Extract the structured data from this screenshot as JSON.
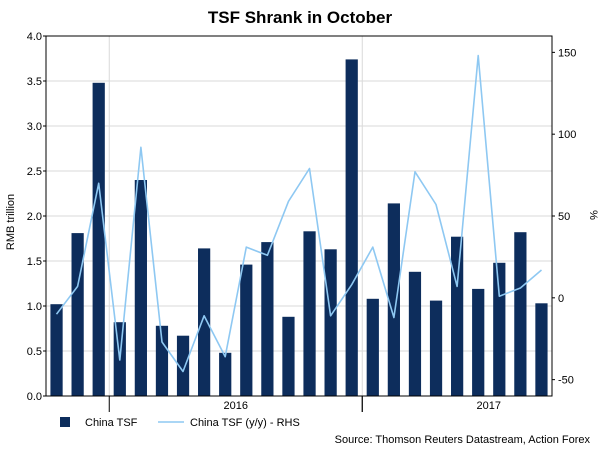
{
  "chart_data": {
    "type": "bar",
    "title": "TSF Shrank in October",
    "ylabel": "RMB trillion",
    "y2label": "%",
    "ylim": [
      0,
      4.0
    ],
    "y2lim": [
      -60,
      160
    ],
    "yticks": [
      "0.0",
      "0.5",
      "1.0",
      "1.5",
      "2.0",
      "2.5",
      "3.0",
      "3.5",
      "4.0"
    ],
    "y2ticks": [
      "-50",
      "0",
      "50",
      "100",
      "150"
    ],
    "x_group_labels": [
      {
        "label": "2016",
        "center_index": 8.5,
        "start_index": 3,
        "end_index": 14
      },
      {
        "label": "2017",
        "center_index": 20.5,
        "start_index": 15,
        "end_index": 26
      }
    ],
    "grid": true,
    "legend_position": "bottom-left",
    "colors": {
      "bars": "#0d2d5c",
      "line": "#8ec8f2",
      "grid": "#d9d9d9"
    },
    "series": [
      {
        "name": "China TSF",
        "type": "bar",
        "axis": "left",
        "values": [
          1.02,
          1.81,
          3.48,
          0.82,
          2.4,
          0.78,
          0.67,
          1.64,
          0.48,
          1.46,
          1.71,
          0.88,
          1.83,
          1.63,
          3.74,
          1.08,
          2.14,
          1.38,
          1.06,
          1.77,
          1.19,
          1.48,
          1.82,
          1.03
        ]
      },
      {
        "name": "China TSF (y/y) - RHS",
        "type": "line",
        "axis": "right",
        "values": [
          -10,
          7,
          70,
          -38,
          92,
          -27,
          -45,
          -11,
          -36,
          31,
          26,
          59,
          79,
          -11,
          8,
          31,
          -12,
          77,
          57,
          7,
          148,
          1,
          6,
          17
        ]
      }
    ]
  },
  "source": "Source: Thomson Reuters Datastream, Action Forex"
}
